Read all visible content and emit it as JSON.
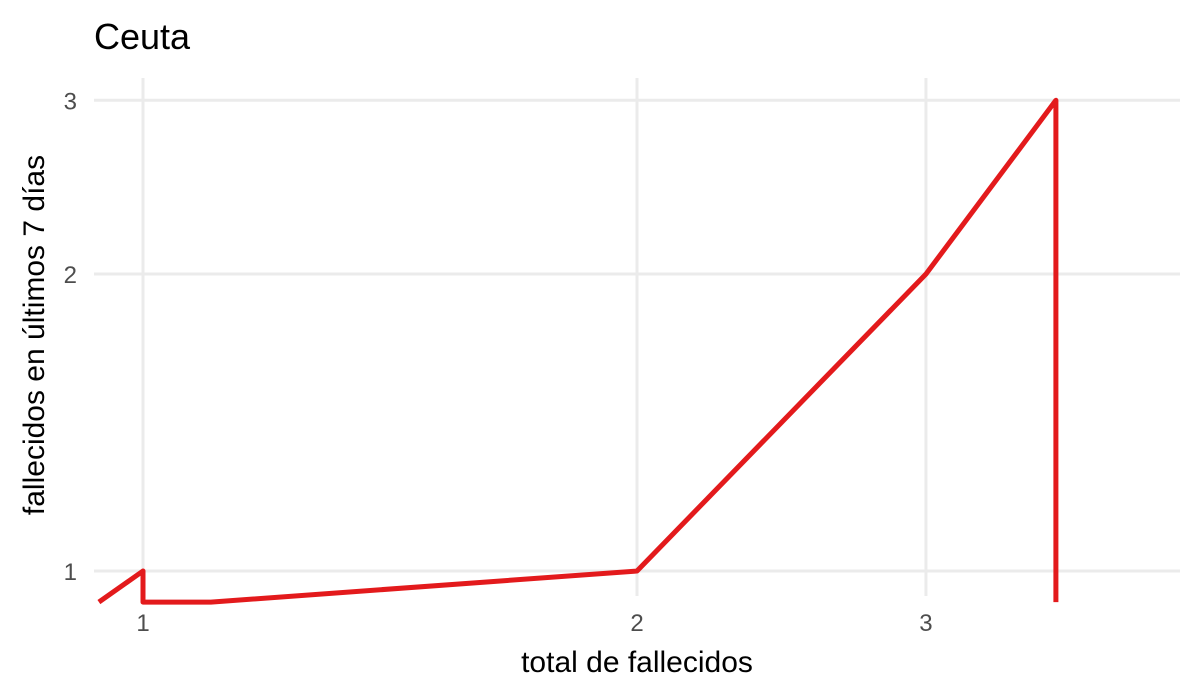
{
  "chart_data": {
    "type": "line",
    "title": "Ceuta",
    "xlabel": "total de fallecidos",
    "ylabel": "fallecidos en últimos 7 días",
    "x_scale": "log",
    "y_scale": "log",
    "xlim": [
      0.94,
      4.6
    ],
    "ylim": [
      0.93,
      3.0
    ],
    "x_ticks": [
      1,
      2,
      3
    ],
    "y_ticks": [
      1,
      2,
      3
    ],
    "grid": true,
    "legend": "none",
    "series": [
      {
        "color": "#e31a1c",
        "points": [
          {
            "x": 0.94,
            "y": 0.93
          },
          {
            "x": 1,
            "y": 1
          },
          {
            "x": 1,
            "y": 0.93
          },
          {
            "x": 1.1,
            "y": 0.93
          },
          {
            "x": 2,
            "y": 1
          },
          {
            "x": 3,
            "y": 2
          },
          {
            "x": 3.6,
            "y": 3
          },
          {
            "x": 3.6,
            "y": 0.93
          }
        ]
      }
    ]
  }
}
